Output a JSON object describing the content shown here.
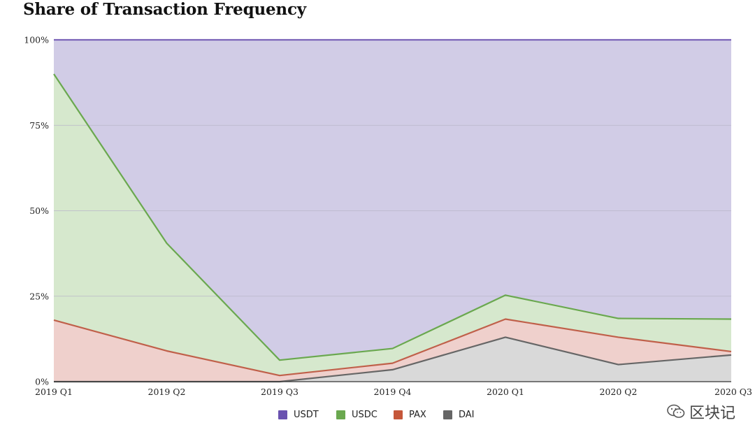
{
  "colors": {
    "USDT": "#d1cce6",
    "USDT_stroke": "#7b63b8",
    "USDC": "#d6e8cd",
    "USDC_stroke": "#6aa84f",
    "PAX": "#efd0cc",
    "PAX_stroke": "#c0604a",
    "DAI": "#d9d9d9",
    "DAI_stroke": "#666666",
    "grid": "#b9b6c9",
    "legend_USDT": "#6a52b0",
    "legend_USDC": "#6aa84f",
    "legend_PAX": "#c5573a",
    "legend_DAI": "#666666"
  },
  "chart_data": {
    "type": "area",
    "stacked": true,
    "title": "Share of Transaction Frequency",
    "categories": [
      "2019 Q1",
      "2019 Q2",
      "2019 Q3",
      "2019 Q4",
      "2020 Q1",
      "2020 Q2",
      "2020 Q3"
    ],
    "y_ticks": [
      "0%",
      "25%",
      "50%",
      "75%",
      "100%"
    ],
    "ylim": [
      0,
      100
    ],
    "grid": true,
    "legend_position": "bottom",
    "series": [
      {
        "name": "DAI",
        "values": [
          0,
          0,
          0,
          3.5,
          13,
          5,
          7.8
        ]
      },
      {
        "name": "PAX",
        "values": [
          18,
          9,
          1.8,
          1.9,
          5.3,
          8,
          1
        ]
      },
      {
        "name": "USDC",
        "values": [
          72,
          31.5,
          4.5,
          4.3,
          7,
          5.5,
          9.5
        ]
      },
      {
        "name": "USDT",
        "values": [
          10,
          59.5,
          93.7,
          90.3,
          74.7,
          81.5,
          81.7
        ]
      }
    ]
  },
  "legend": {
    "items": [
      "USDT",
      "USDC",
      "PAX",
      "DAI"
    ]
  },
  "watermark": {
    "text": "区块记"
  }
}
